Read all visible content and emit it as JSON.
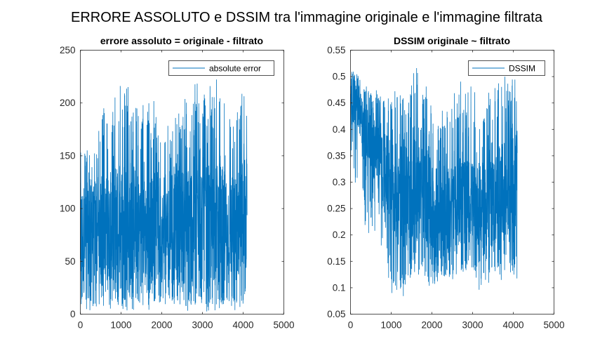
{
  "figure": {
    "suptitle": "ERRORE ASSOLUTO e DSSIM tra l'immagine originale e l'immagine filtrata"
  },
  "colors": {
    "series": "#0072BD",
    "axes": "#262626",
    "background": "#ffffff"
  },
  "chart_data": [
    {
      "type": "line",
      "title": "errore assoluto = originale - filtrato",
      "xlabel": "",
      "ylabel": "",
      "xlim": [
        0,
        5000
      ],
      "ylim": [
        0,
        250
      ],
      "xticks": [
        "0",
        "1000",
        "2000",
        "3000",
        "4000",
        "5000"
      ],
      "yticks": [
        "0",
        "50",
        "100",
        "150",
        "200",
        "250"
      ],
      "legend": {
        "location": "top-right",
        "entries": [
          "absolute error"
        ]
      },
      "grid": false,
      "series": [
        {
          "name": "absolute error",
          "n_points": 4096,
          "x": [
            0,
            200,
            400,
            600,
            800,
            1000,
            1200,
            1400,
            1600,
            1800,
            2000,
            2200,
            2400,
            2600,
            2800,
            3000,
            3200,
            3400,
            3600,
            3800,
            4000,
            4096
          ],
          "y_min": [
            3,
            2,
            3,
            4,
            3,
            2,
            3,
            4,
            3,
            2,
            3,
            4,
            3,
            2,
            3,
            2,
            3,
            4,
            3,
            2,
            3,
            30
          ],
          "y_low": [
            20,
            25,
            30,
            35,
            30,
            25,
            30,
            35,
            30,
            28,
            30,
            32,
            30,
            25,
            30,
            30,
            28,
            30,
            32,
            30,
            35,
            40
          ],
          "y_high": [
            125,
            125,
            120,
            130,
            140,
            145,
            150,
            140,
            130,
            135,
            120,
            125,
            140,
            140,
            150,
            150,
            140,
            145,
            135,
            130,
            150,
            150
          ],
          "y_max": [
            165,
            160,
            170,
            200,
            215,
            222,
            215,
            210,
            200,
            205,
            160,
            185,
            205,
            210,
            225,
            220,
            225,
            225,
            210,
            205,
            220,
            225
          ]
        }
      ]
    },
    {
      "type": "line",
      "title": "DSSIM originale ~ filtrato",
      "xlabel": "",
      "ylabel": "",
      "xlim": [
        0,
        5000
      ],
      "ylim": [
        0.05,
        0.55
      ],
      "xticks": [
        "0",
        "1000",
        "2000",
        "3000",
        "4000",
        "5000"
      ],
      "yticks": [
        "0.05",
        "0.1",
        "0.15",
        "0.2",
        "0.25",
        "0.3",
        "0.35",
        "0.4",
        "0.45",
        "0.5",
        "0.55"
      ],
      "legend": {
        "location": "top-right",
        "entries": [
          "DSSIM"
        ]
      },
      "grid": false,
      "series": [
        {
          "name": "DSSIM",
          "n_points": 4096,
          "x": [
            0,
            200,
            400,
            600,
            800,
            1000,
            1200,
            1400,
            1600,
            1800,
            2000,
            2200,
            2400,
            2600,
            2800,
            3000,
            3200,
            3400,
            3600,
            3800,
            4000,
            4096
          ],
          "y_min": [
            0.3,
            0.25,
            0.2,
            0.18,
            0.14,
            0.08,
            0.06,
            0.1,
            0.12,
            0.12,
            0.09,
            0.1,
            0.12,
            0.11,
            0.13,
            0.11,
            0.08,
            0.1,
            0.12,
            0.11,
            0.11,
            0.11
          ],
          "y_low": [
            0.42,
            0.4,
            0.33,
            0.3,
            0.26,
            0.22,
            0.17,
            0.17,
            0.18,
            0.2,
            0.15,
            0.15,
            0.16,
            0.17,
            0.18,
            0.19,
            0.17,
            0.17,
            0.18,
            0.18,
            0.2,
            0.25
          ],
          "y_high": [
            0.49,
            0.48,
            0.44,
            0.42,
            0.4,
            0.38,
            0.37,
            0.38,
            0.38,
            0.37,
            0.34,
            0.32,
            0.33,
            0.34,
            0.35,
            0.34,
            0.33,
            0.34,
            0.36,
            0.38,
            0.39,
            0.4
          ],
          "y_max": [
            0.51,
            0.51,
            0.48,
            0.48,
            0.47,
            0.47,
            0.48,
            0.5,
            0.52,
            0.51,
            0.45,
            0.43,
            0.45,
            0.48,
            0.5,
            0.48,
            0.45,
            0.48,
            0.49,
            0.5,
            0.5,
            0.5
          ]
        }
      ]
    }
  ]
}
